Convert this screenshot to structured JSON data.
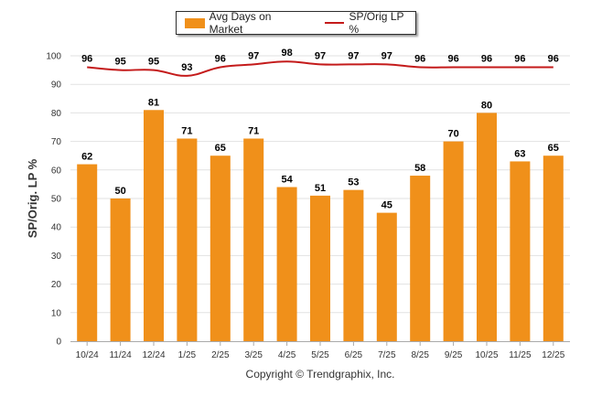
{
  "chart_data": {
    "type": "bar+line",
    "categories": [
      "10/24",
      "11/24",
      "12/24",
      "1/25",
      "2/25",
      "3/25",
      "4/25",
      "5/25",
      "6/25",
      "7/25",
      "8/25",
      "9/25",
      "10/25",
      "11/25",
      "12/25"
    ],
    "series": [
      {
        "name": "Avg Days on Market",
        "type": "bar",
        "color": "#f0901a",
        "values": [
          62,
          50,
          81,
          71,
          65,
          71,
          54,
          51,
          53,
          45,
          58,
          70,
          80,
          63,
          65
        ]
      },
      {
        "name": "SP/Orig LP %",
        "type": "line",
        "color": "#c41a1a",
        "values": [
          96,
          95,
          95,
          93,
          96,
          97,
          98,
          97,
          97,
          97,
          96,
          96,
          96,
          96,
          96
        ]
      }
    ],
    "ylabel": "SP/Orig. LP %",
    "ylim": [
      0,
      100
    ],
    "yticks": [
      0,
      10,
      20,
      30,
      40,
      50,
      60,
      70,
      80,
      90,
      100
    ],
    "grid": true,
    "legend": "top-center"
  },
  "credit": "Copyright © Trendgraphix, Inc."
}
